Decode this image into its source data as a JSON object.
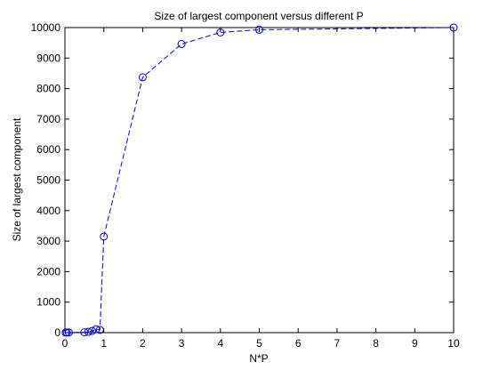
{
  "chart_data": {
    "type": "line",
    "title": "Size of largest component versus different P",
    "xlabel": "N*P",
    "ylabel": "Size of largest component",
    "xlim": [
      0,
      10
    ],
    "ylim": [
      0,
      10000
    ],
    "xticks": [
      0,
      1,
      2,
      3,
      4,
      5,
      6,
      7,
      8,
      9,
      10
    ],
    "yticks": [
      0,
      1000,
      2000,
      3000,
      4000,
      5000,
      6000,
      7000,
      8000,
      9000,
      10000
    ],
    "grid": false,
    "series": [
      {
        "marker": "circle",
        "line_style": "dashed",
        "color": "#0000cc",
        "x": [
          0.02,
          0.05,
          0.1,
          0.5,
          0.6,
          0.7,
          0.8,
          0.9,
          1.0,
          2.0,
          3.0,
          4.0,
          5.0,
          10.0
        ],
        "y": [
          2,
          3,
          4,
          12,
          25,
          55,
          110,
          90,
          3150,
          8370,
          9460,
          9840,
          9930,
          10000
        ]
      }
    ]
  }
}
